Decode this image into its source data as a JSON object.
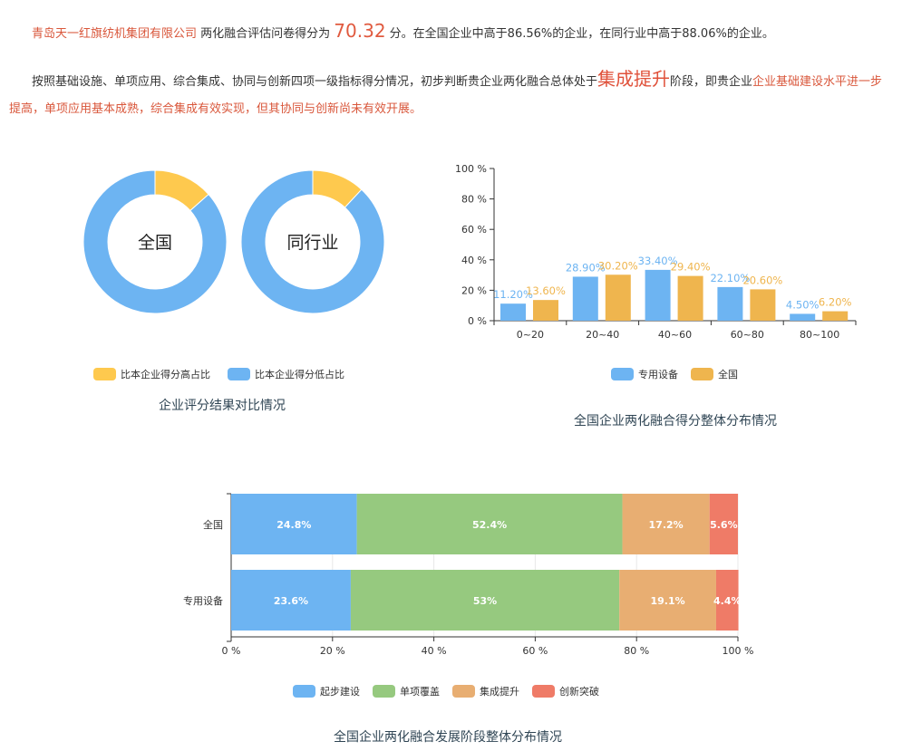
{
  "summary": {
    "company": "青岛天一红旗纺机集团有限公司",
    "t1": " 两化融合评估问卷得分为 ",
    "score": "70.32",
    "t2": " 分。在全国企业中高于86.56%的企业，在同行业中高于88.06%的企业。",
    "t3": "按照基础设施、单项应用、综合集成、协同与创新四项一级指标得分情况，初步判断贵企业两化融合总体处于",
    "stage": "集成提升",
    "t4": "阶段，即贵企业",
    "t5": "企业基础建设水平进一步提高，单项应用基本成熟，综合集成有效实现，但其协同与创新尚未有效开展。"
  },
  "chart_data": [
    {
      "type": "pie",
      "title": "企业评分结果对比情况",
      "donuts": [
        {
          "label": "全国",
          "higher": 13.44,
          "lower": 86.56
        },
        {
          "label": "同行业",
          "higher": 11.94,
          "lower": 88.06
        }
      ],
      "legend": [
        "比本企业得分高占比",
        "比本企业得分低占比"
      ],
      "colors": [
        "#fec94e",
        "#6db4f2"
      ]
    },
    {
      "type": "bar",
      "title": "全国企业两化融合得分整体分布情况",
      "categories": [
        "0~20",
        "20~40",
        "40~60",
        "60~80",
        "80~100"
      ],
      "ylim": [
        0,
        100
      ],
      "yticks": [
        "0 %",
        "20 %",
        "40 %",
        "60 %",
        "80 %",
        "100 %"
      ],
      "series": [
        {
          "name": "专用设备",
          "values": [
            11.2,
            28.9,
            33.4,
            22.1,
            4.5
          ],
          "labels": [
            "11.20%",
            "28.90%",
            "33.40%",
            "22.10%",
            "4.50%"
          ],
          "color": "#6db4f2"
        },
        {
          "name": "全国",
          "values": [
            13.6,
            30.2,
            29.4,
            20.6,
            6.2
          ],
          "labels": [
            "13.60%",
            "30.20%",
            "29.40%",
            "20.60%",
            "6.20%"
          ],
          "color": "#efb54e"
        }
      ]
    },
    {
      "type": "bar",
      "orientation": "horizontal",
      "stacked": true,
      "title": "全国企业两化融合发展阶段整体分布情况",
      "categories": [
        "全国",
        "专用设备"
      ],
      "xlim": [
        0,
        100
      ],
      "xticks": [
        "0 %",
        "20 %",
        "40 %",
        "60 %",
        "80 %",
        "100 %"
      ],
      "series": [
        {
          "name": "起步建设",
          "values": [
            24.8,
            23.6
          ],
          "labels": [
            "24.8%",
            "23.6%"
          ],
          "color": "#6db4f2"
        },
        {
          "name": "单项覆盖",
          "values": [
            52.4,
            53
          ],
          "labels": [
            "52.4%",
            "53%"
          ],
          "color": "#96c97f"
        },
        {
          "name": "集成提升",
          "values": [
            17.2,
            19.1
          ],
          "labels": [
            "17.2%",
            "19.1%"
          ],
          "color": "#e8ae72"
        },
        {
          "name": "创新突破",
          "values": [
            5.6,
            4.4
          ],
          "labels": [
            "5.6%",
            "4.4%"
          ],
          "color": "#ef7b67"
        }
      ]
    }
  ]
}
